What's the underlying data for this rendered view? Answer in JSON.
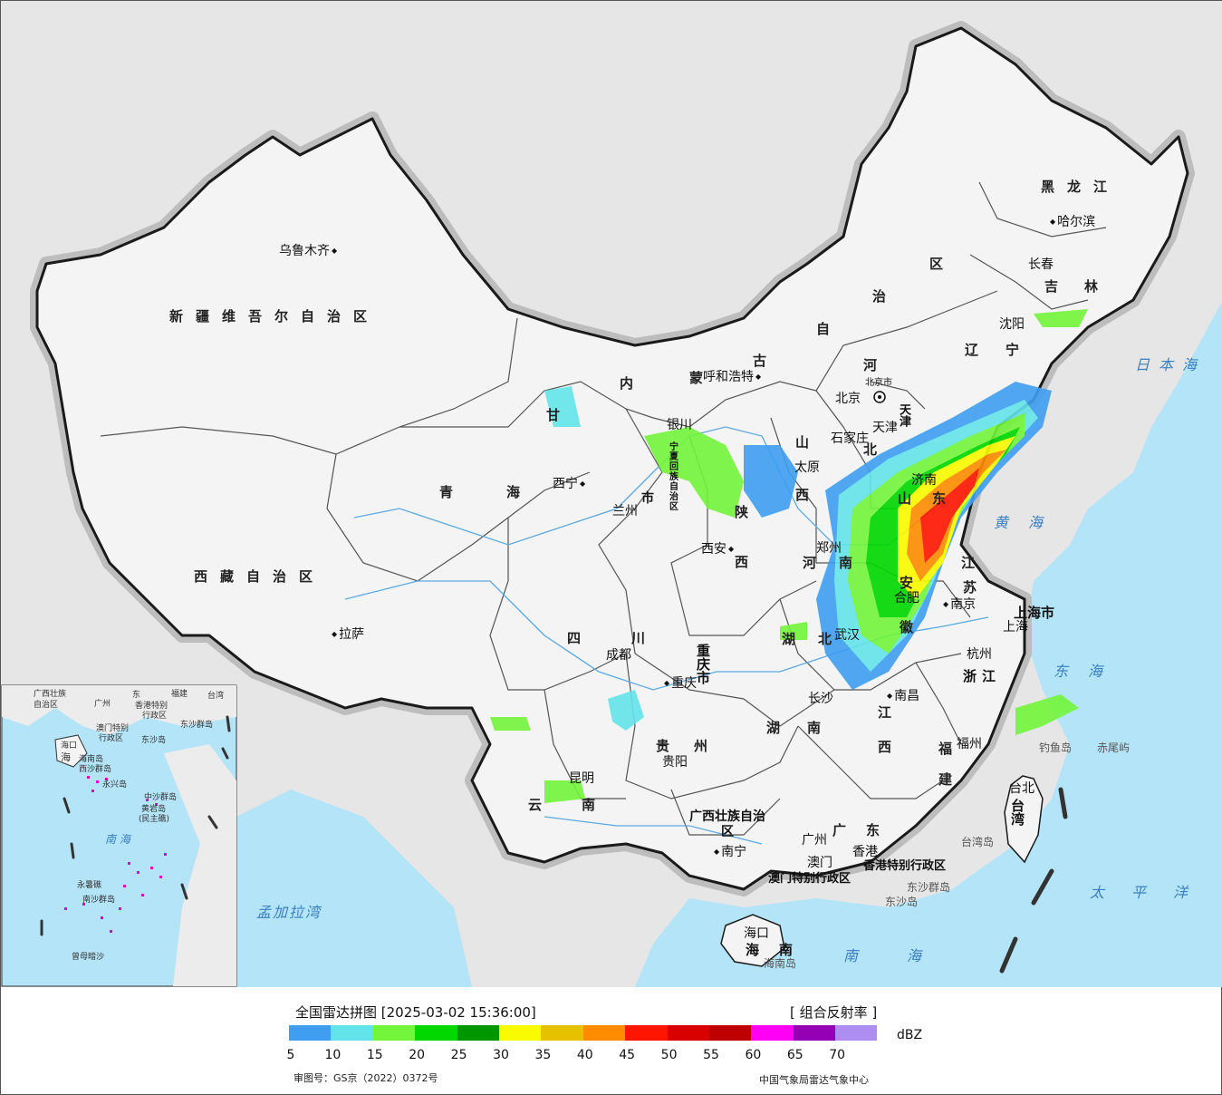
{
  "legend": {
    "title": "全国雷达拼图 [2025-03-02 15:36:00]",
    "product": "[ 组合反射率 ]",
    "unit": "dBZ",
    "ticks": [
      "5",
      "10",
      "15",
      "20",
      "25",
      "30",
      "35",
      "40",
      "45",
      "50",
      "55",
      "60",
      "65",
      "70"
    ],
    "colors": [
      "#3f9ef0",
      "#63e4ea",
      "#72f53a",
      "#00d800",
      "#009600",
      "#fbfb00",
      "#e6c100",
      "#ff8c00",
      "#ff1500",
      "#d90000",
      "#be0000",
      "#ff00f5",
      "#9600b4",
      "#ad8ef0"
    ],
    "approval": "审图号：GS京（2022）0372号",
    "org": "中国气象局雷达气象中心"
  },
  "map": {
    "regions": {
      "xinjiang": "新疆维吾尔自治区",
      "tibet": "西藏自治区",
      "qinghai_a": "青",
      "qinghai_b": "海",
      "heilongjiang": "黑龙江",
      "jilin_a": "吉",
      "jilin_b": "林",
      "liaoning_a": "辽",
      "liaoning_b": "宁",
      "neimenggu": [
        "内",
        "蒙",
        "古",
        "自",
        "治",
        "区"
      ],
      "gansu": "甘",
      "ningxia": "宁夏回族自治区",
      "shaanxi": [
        "陕",
        "西"
      ],
      "shanxi": [
        "山",
        "西"
      ],
      "hebei": [
        "河",
        "北"
      ],
      "tianjin": "天津",
      "shandong": [
        "山",
        "东"
      ],
      "henan": [
        "河",
        "南"
      ],
      "jiangsu": [
        "江",
        "苏"
      ],
      "anhui": [
        "安",
        "徽"
      ],
      "hubei": [
        "湖",
        "北"
      ],
      "sichuan": [
        "四",
        "川"
      ],
      "chongqing": "重庆市",
      "guizhou": [
        "贵",
        "州"
      ],
      "yunnan": [
        "云",
        "南"
      ],
      "hunan": [
        "湖",
        "南"
      ],
      "jiangxi": [
        "江",
        "西"
      ],
      "zhejiang": "浙江",
      "fujian": [
        "福",
        "建"
      ],
      "guangxi": "广西壮族自治区",
      "guangdong": [
        "广",
        "东"
      ],
      "hainan": "海南",
      "taiwan": "台湾",
      "shanghai": "上海市",
      "gansu_shi": "市",
      "hongkong": "香港特别行政区",
      "macau": "澳门特别行政区"
    },
    "cities": {
      "urumqi": "乌鲁木齐",
      "lhasa": "拉萨",
      "xining": "西宁",
      "lanzhou": "兰州",
      "yinchuan": "银川",
      "hohhot": "呼和浩特",
      "beijing": "北京",
      "beijing_shi": "北京市",
      "tianjin": "天津",
      "shijiazhuang": "石家庄",
      "taiyuan": "太原",
      "jinan": "济南",
      "xian": "西安",
      "zhengzhou": "郑州",
      "hefei": "合肥",
      "nanjing": "南京",
      "shanghai": "上海",
      "hangzhou": "杭州",
      "wuhan": "武汉",
      "chengdu": "成都",
      "chongqing": "重庆",
      "guiyang": "贵阳",
      "kunming": "昆明",
      "changsha": "长沙",
      "nanchang": "南昌",
      "fuzhou": "福州",
      "nanning": "南宁",
      "guangzhou": "广州",
      "macau": "澳门",
      "hongkong": "香港",
      "haikou": "海口",
      "taibei": "台北",
      "shenyang": "沈阳",
      "changchun": "长春",
      "harbin": "哈尔滨"
    },
    "seas": {
      "japan_sea": "日本海",
      "yellow_sea": "黄海",
      "east_sea": "东海",
      "pacific": "太平洋",
      "south_sea": "南海",
      "bengal": "孟加拉湾"
    },
    "islands": {
      "diaoyu": "钓鱼岛",
      "chiwei": "赤尾屿",
      "taiwan_island": "台湾岛",
      "dongsha_islands": "东沙群岛",
      "dongsha_island": "东沙岛",
      "hainan_island": "海南岛"
    },
    "inset": {
      "title_guangxi": "广西壮族",
      "title_zizhiqu": "自治区",
      "dong": "东",
      "fujian": "福建",
      "taiwan": "台湾",
      "guangzhou": "广州",
      "hongkong": "香港特别",
      "xingzhengqu": "行政区",
      "macau": "澳门特别",
      "macau_xz": "行政区",
      "dongsha": "东沙群岛",
      "dongsha_dao": "东沙岛",
      "haikou": "海口",
      "hai": "海",
      "nan": "南",
      "xisha": "西沙群岛",
      "yongxing": "永兴岛",
      "zhongsha": "中沙群岛",
      "huangyan": "黄岩岛",
      "minzhu": "(民主礁)",
      "nanhai": "南  海",
      "yongshu": "永暑礁",
      "nansha": "南沙群岛",
      "zengmu": "曾母暗沙",
      "hainan_dao": "海南岛"
    }
  }
}
